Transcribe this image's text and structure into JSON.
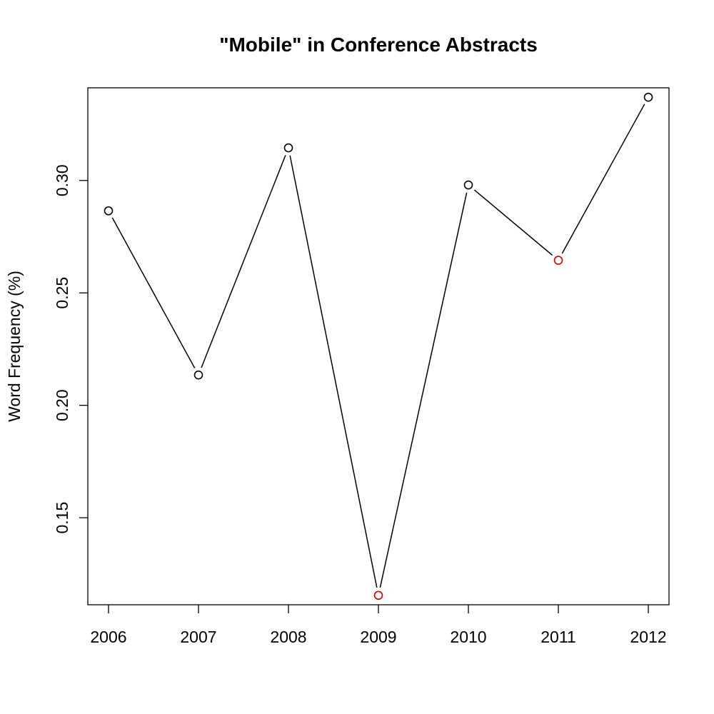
{
  "chart_data": {
    "type": "line",
    "title": "\"Mobile\" in Conference Abstracts",
    "xlabel": "",
    "ylabel": "Word Frequency (%)",
    "categories": [
      "2006",
      "2007",
      "2008",
      "2009",
      "2010",
      "2011",
      "2012"
    ],
    "x": [
      2006,
      2007,
      2008,
      2009,
      2010,
      2011,
      2012
    ],
    "series": [
      {
        "values": [
          0.2865,
          0.2135,
          0.3145,
          0.1155,
          0.298,
          0.2645,
          0.337
        ]
      }
    ],
    "highlight_indices": [
      3,
      5
    ],
    "xlim": [
      2005.77,
      2012.23
    ],
    "ylim": [
      0.1113,
      0.3412
    ],
    "yticks": [
      0.15,
      0.2,
      0.25,
      0.3
    ],
    "ytick_labels": [
      "0.15",
      "0.20",
      "0.25",
      "0.30"
    ],
    "grid": false,
    "colors": {
      "line": "#000000",
      "point": "#000000",
      "highlight": "#cc0000"
    }
  }
}
